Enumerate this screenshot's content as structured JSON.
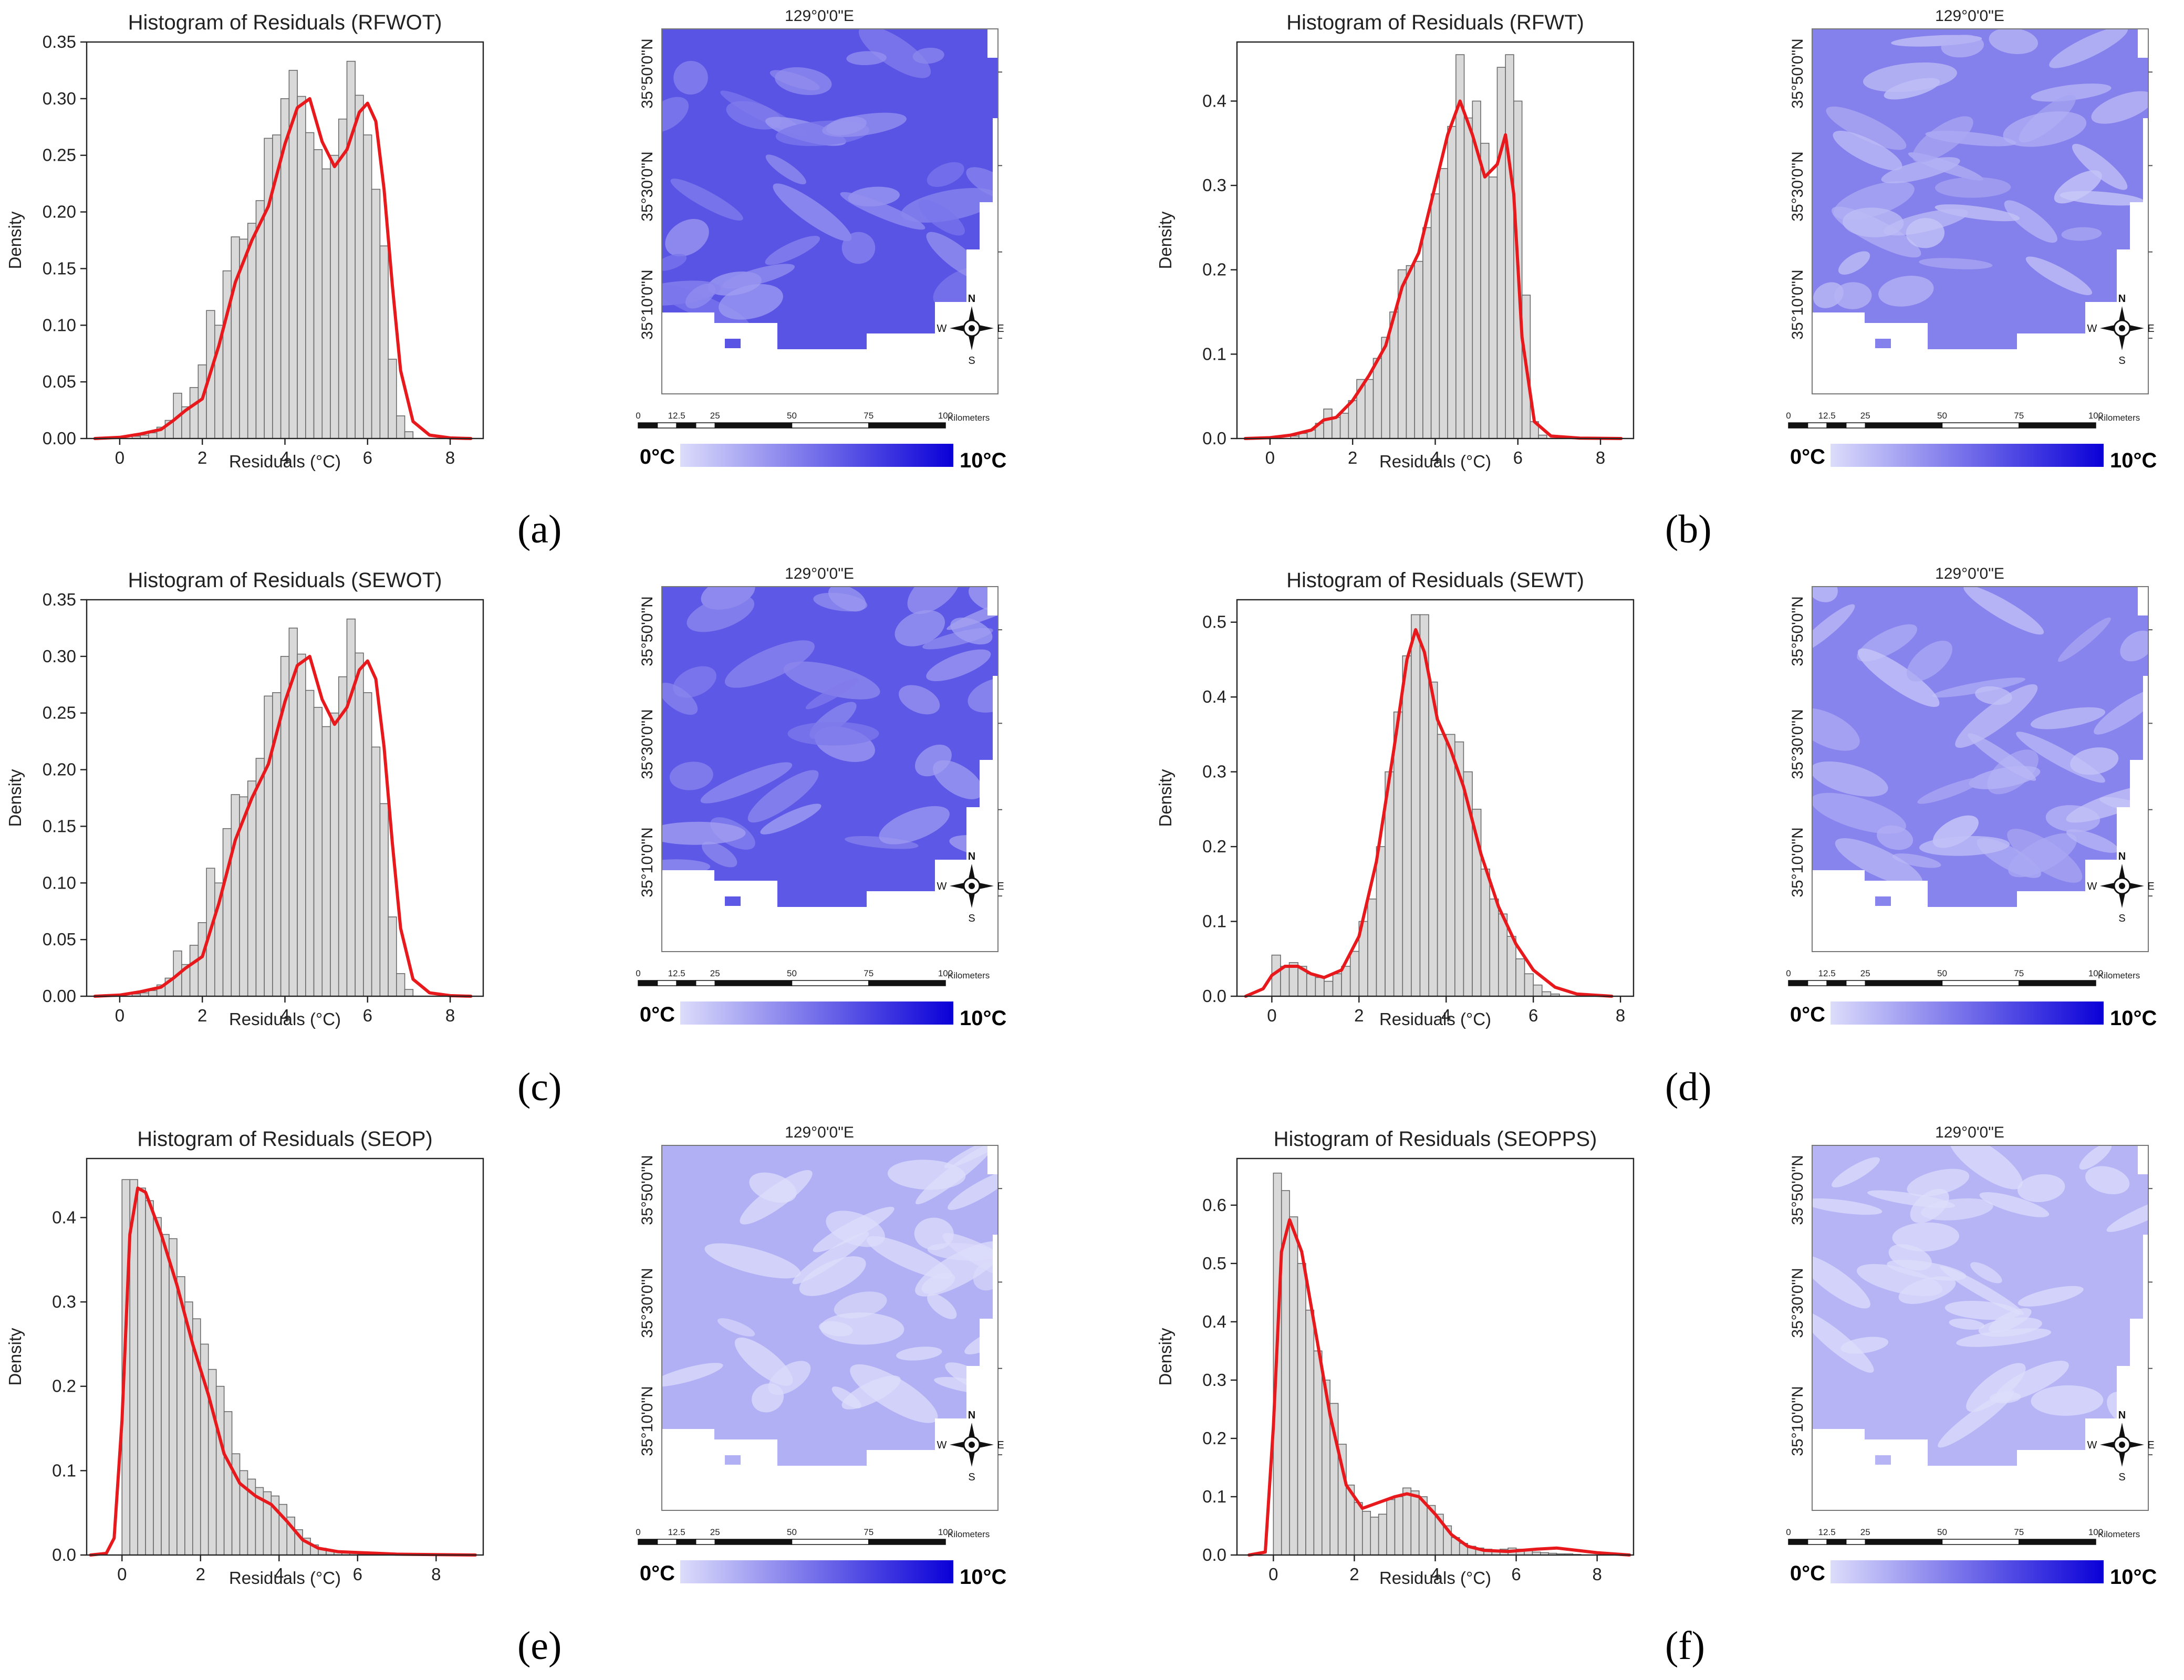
{
  "colors": {
    "bar_fill": "#d9d9d9",
    "bar_edge": "#6b6b6b",
    "kde_line": "#e8191c",
    "map_low": "#dcdcfb",
    "map_high": "#0a00d8"
  },
  "x_ticks": [
    "0",
    "2",
    "4",
    "6",
    "8"
  ],
  "map_common": {
    "top_label": "129°0'0\"E",
    "lat_labels": [
      "35°50'0\"N",
      "35°30'0\"N",
      "35°10'0\"N"
    ],
    "scale_ticks": [
      "0",
      "12.5",
      "25",
      "50",
      "75",
      "100"
    ],
    "scale_unit": "Kilometers",
    "compass": {
      "n": "N",
      "s": "S",
      "e": "E",
      "w": "W"
    },
    "legend_min": "0°C",
    "legend_max": "10°C"
  },
  "chart_data": [
    {
      "panel": "(a)",
      "type": "bar",
      "title": "Histogram of Residuals (RFWOT)",
      "xlabel": "Residuals (°C)",
      "ylabel": "Density",
      "xlim": [
        -0.8,
        8.8
      ],
      "ylim": [
        0,
        0.35
      ],
      "y_ticks": [
        "0.00",
        "0.05",
        "0.10",
        "0.15",
        "0.20",
        "0.25",
        "0.30",
        "0.35"
      ],
      "bin_start": 0.3,
      "bin_width": 0.2,
      "values": [
        0.002,
        0.003,
        0.005,
        0.01,
        0.016,
        0.04,
        0.028,
        0.045,
        0.065,
        0.113,
        0.1,
        0.148,
        0.178,
        0.176,
        0.19,
        0.21,
        0.265,
        0.268,
        0.3,
        0.325,
        0.302,
        0.27,
        0.255,
        0.238,
        0.25,
        0.282,
        0.333,
        0.303,
        0.268,
        0.22,
        0.17,
        0.07,
        0.02,
        0.006
      ],
      "kde_x": [
        -0.6,
        0,
        0.5,
        1,
        1.3,
        1.6,
        2,
        2.4,
        2.8,
        3.2,
        3.6,
        4,
        4.3,
        4.6,
        4.9,
        5.2,
        5.5,
        5.8,
        6.0,
        6.2,
        6.4,
        6.6,
        6.8,
        7.1,
        7.5,
        8,
        8.5
      ],
      "kde_y": [
        0,
        0.001,
        0.004,
        0.008,
        0.016,
        0.025,
        0.035,
        0.082,
        0.138,
        0.175,
        0.205,
        0.26,
        0.292,
        0.3,
        0.262,
        0.24,
        0.255,
        0.288,
        0.296,
        0.28,
        0.22,
        0.135,
        0.06,
        0.015,
        0.003,
        0.0005,
        0
      ]
    },
    {
      "panel": "(b)",
      "type": "bar",
      "title": "Histogram of Residuals (RFWT)",
      "xlabel": "Residuals (°C)",
      "ylabel": "Density",
      "xlim": [
        -0.8,
        8.8
      ],
      "ylim": [
        0,
        0.47
      ],
      "y_ticks": [
        "0.0",
        "0.1",
        "0.2",
        "0.3",
        "0.4"
      ],
      "bin_start": 0.5,
      "bin_width": 0.2,
      "values": [
        0.003,
        0.006,
        0.01,
        0.018,
        0.035,
        0.025,
        0.03,
        0.045,
        0.07,
        0.07,
        0.095,
        0.12,
        0.15,
        0.2,
        0.205,
        0.21,
        0.25,
        0.29,
        0.32,
        0.37,
        0.455,
        0.38,
        0.4,
        0.35,
        0.31,
        0.44,
        0.455,
        0.4,
        0.17,
        0.02,
        0.004
      ],
      "kde_x": [
        -0.6,
        0,
        0.5,
        1,
        1.3,
        1.6,
        2,
        2.4,
        2.8,
        3.2,
        3.6,
        4,
        4.3,
        4.6,
        4.9,
        5.2,
        5.5,
        5.7,
        5.9,
        6.1,
        6.4,
        6.8,
        7.5,
        8.5
      ],
      "kde_y": [
        0,
        0.001,
        0.004,
        0.01,
        0.022,
        0.025,
        0.045,
        0.075,
        0.11,
        0.18,
        0.22,
        0.3,
        0.36,
        0.4,
        0.36,
        0.31,
        0.325,
        0.36,
        0.29,
        0.12,
        0.02,
        0.003,
        0.0005,
        0
      ]
    },
    {
      "panel": "(c)",
      "type": "bar",
      "title": "Histogram of Residuals (SEWOT)",
      "xlabel": "Residuals (°C)",
      "ylabel": "Density",
      "xlim": [
        -0.8,
        8.8
      ],
      "ylim": [
        0,
        0.35
      ],
      "y_ticks": [
        "0.00",
        "0.05",
        "0.10",
        "0.15",
        "0.20",
        "0.25",
        "0.30",
        "0.35"
      ],
      "bin_start": 0.3,
      "bin_width": 0.2,
      "values": [
        0.002,
        0.003,
        0.005,
        0.01,
        0.016,
        0.04,
        0.028,
        0.045,
        0.065,
        0.113,
        0.1,
        0.148,
        0.178,
        0.176,
        0.19,
        0.21,
        0.265,
        0.268,
        0.3,
        0.325,
        0.302,
        0.27,
        0.255,
        0.238,
        0.25,
        0.282,
        0.333,
        0.303,
        0.268,
        0.22,
        0.17,
        0.07,
        0.02,
        0.006
      ],
      "kde_x": [
        -0.6,
        0,
        0.5,
        1,
        1.3,
        1.6,
        2,
        2.4,
        2.8,
        3.2,
        3.6,
        4,
        4.3,
        4.6,
        4.9,
        5.2,
        5.5,
        5.8,
        6.0,
        6.2,
        6.4,
        6.6,
        6.8,
        7.1,
        7.5,
        8,
        8.5
      ],
      "kde_y": [
        0,
        0.001,
        0.004,
        0.008,
        0.016,
        0.025,
        0.035,
        0.082,
        0.138,
        0.175,
        0.205,
        0.26,
        0.292,
        0.3,
        0.262,
        0.24,
        0.255,
        0.288,
        0.296,
        0.28,
        0.22,
        0.135,
        0.06,
        0.015,
        0.003,
        0.0005,
        0
      ]
    },
    {
      "panel": "(d)",
      "type": "bar",
      "title": "Histogram of Residuals (SEWT)",
      "xlabel": "Residuals (°C)",
      "ylabel": "Density",
      "xlim": [
        -0.8,
        8.3
      ],
      "ylim": [
        0,
        0.53
      ],
      "y_ticks": [
        "0.0",
        "0.1",
        "0.2",
        "0.3",
        "0.4",
        "0.5"
      ],
      "bin_start": 0.0,
      "bin_width": 0.2,
      "values": [
        0.055,
        0.04,
        0.045,
        0.04,
        0.03,
        0.025,
        0.02,
        0.03,
        0.04,
        0.06,
        0.1,
        0.13,
        0.2,
        0.3,
        0.38,
        0.455,
        0.51,
        0.51,
        0.42,
        0.35,
        0.35,
        0.34,
        0.3,
        0.25,
        0.17,
        0.13,
        0.11,
        0.08,
        0.05,
        0.03,
        0.015,
        0.006,
        0.003
      ],
      "kde_x": [
        -0.6,
        -0.2,
        0,
        0.3,
        0.6,
        0.9,
        1.2,
        1.6,
        2,
        2.4,
        2.8,
        3.1,
        3.3,
        3.5,
        3.8,
        4.1,
        4.4,
        4.8,
        5.2,
        5.6,
        6,
        6.5,
        7,
        7.8
      ],
      "kde_y": [
        0,
        0.01,
        0.028,
        0.04,
        0.04,
        0.03,
        0.025,
        0.035,
        0.08,
        0.18,
        0.33,
        0.45,
        0.49,
        0.46,
        0.37,
        0.33,
        0.28,
        0.19,
        0.12,
        0.07,
        0.035,
        0.012,
        0.003,
        0
      ]
    },
    {
      "panel": "(e)",
      "type": "bar",
      "title": "Histogram of Residuals (SEOP)",
      "xlabel": "Residuals (°C)",
      "ylabel": "Density",
      "xlim": [
        -0.9,
        9.2
      ],
      "ylim": [
        0,
        0.47
      ],
      "y_ticks": [
        "0.0",
        "0.1",
        "0.2",
        "0.3",
        "0.4"
      ],
      "bin_start": 0.0,
      "bin_width": 0.2,
      "values": [
        0.445,
        0.445,
        0.435,
        0.42,
        0.4,
        0.38,
        0.375,
        0.33,
        0.3,
        0.28,
        0.25,
        0.22,
        0.2,
        0.17,
        0.12,
        0.1,
        0.09,
        0.08,
        0.075,
        0.07,
        0.06,
        0.045,
        0.03,
        0.02,
        0.012,
        0.008,
        0.005,
        0.004,
        0.003,
        0.002,
        0.001,
        0.001
      ],
      "kde_x": [
        -0.8,
        -0.4,
        -0.2,
        0,
        0.2,
        0.4,
        0.6,
        1,
        1.4,
        1.8,
        2.2,
        2.6,
        3,
        3.4,
        3.8,
        4.2,
        4.6,
        5,
        5.5,
        6,
        6.5,
        7,
        8,
        9
      ],
      "kde_y": [
        0,
        0.002,
        0.02,
        0.16,
        0.38,
        0.435,
        0.43,
        0.38,
        0.32,
        0.25,
        0.19,
        0.12,
        0.085,
        0.07,
        0.06,
        0.04,
        0.018,
        0.008,
        0.004,
        0.003,
        0.002,
        0.001,
        0.0005,
        0
      ]
    },
    {
      "panel": "(f)",
      "type": "bar",
      "title": "Histogram of Residuals (SEOPPS)",
      "xlabel": "Residuals (°C)",
      "ylabel": "Density",
      "xlim": [
        -0.9,
        8.9
      ],
      "ylim": [
        0,
        0.68
      ],
      "y_ticks": [
        "0.0",
        "0.1",
        "0.2",
        "0.3",
        "0.4",
        "0.5",
        "0.6"
      ],
      "bin_start": 0.0,
      "bin_width": 0.2,
      "values": [
        0.655,
        0.625,
        0.58,
        0.5,
        0.42,
        0.35,
        0.3,
        0.26,
        0.19,
        0.12,
        0.09,
        0.075,
        0.065,
        0.07,
        0.095,
        0.1,
        0.115,
        0.11,
        0.1,
        0.085,
        0.07,
        0.05,
        0.03,
        0.02,
        0.015,
        0.012,
        0.01,
        0.008,
        0.01,
        0.012,
        0.01,
        0.008,
        0.005,
        0.004,
        0.003,
        0.002,
        0.002,
        0.001
      ],
      "kde_x": [
        -0.6,
        -0.2,
        0,
        0.2,
        0.4,
        0.7,
        1,
        1.4,
        1.8,
        2.2,
        2.6,
        3,
        3.3,
        3.6,
        4,
        4.4,
        4.8,
        5.2,
        5.8,
        6.5,
        7,
        7.5,
        8,
        8.8
      ],
      "kde_y": [
        0,
        0.005,
        0.22,
        0.52,
        0.575,
        0.52,
        0.4,
        0.24,
        0.12,
        0.08,
        0.09,
        0.1,
        0.105,
        0.1,
        0.07,
        0.035,
        0.015,
        0.008,
        0.006,
        0.01,
        0.012,
        0.008,
        0.004,
        0
      ]
    }
  ],
  "maps": [
    {
      "panel": "(a)",
      "intensity": 0.62
    },
    {
      "panel": "(b)",
      "intensity": 0.42
    },
    {
      "panel": "(c)",
      "intensity": 0.6
    },
    {
      "panel": "(d)",
      "intensity": 0.4
    },
    {
      "panel": "(e)",
      "intensity": 0.2
    },
    {
      "panel": "(f)",
      "intensity": 0.18
    }
  ]
}
